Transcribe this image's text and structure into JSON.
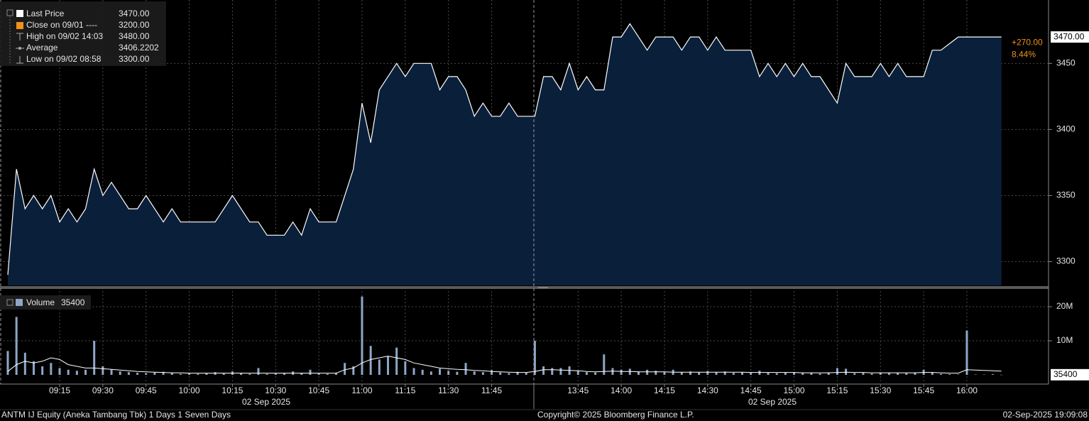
{
  "chart_data": [
    {
      "type": "area",
      "series": [
        {
          "name": "Last Price",
          "color": "#ffffff",
          "fill": "#0a1f3a",
          "last_label": "3470.00",
          "values": [
            3290,
            3370,
            3340,
            3350,
            3340,
            3350,
            3330,
            3340,
            3330,
            3340,
            3370,
            3350,
            3360,
            3350,
            3340,
            3340,
            3350,
            3340,
            3330,
            3340,
            3330,
            3330,
            3330,
            3330,
            3330,
            3340,
            3350,
            3340,
            3330,
            3330,
            3320,
            3320,
            3320,
            3330,
            3320,
            3340,
            3330,
            3330,
            3330,
            3350,
            3370,
            3420,
            3390,
            3430,
            3440,
            3450,
            3440,
            3450,
            3450,
            3450,
            3430,
            3440,
            3440,
            3430,
            3410,
            3420,
            3410,
            3410,
            3420,
            3410,
            3410,
            3410,
            3440,
            3440,
            3430,
            3450,
            3430,
            3440,
            3430,
            3430,
            3470,
            3470,
            3480,
            3470,
            3460,
            3470,
            3470,
            3470,
            3460,
            3470,
            3470,
            3460,
            3470,
            3460,
            3460,
            3460,
            3460,
            3440,
            3450,
            3440,
            3450,
            3440,
            3450,
            3440,
            3440,
            3430,
            3420,
            3450,
            3440,
            3440,
            3440,
            3450,
            3440,
            3450,
            3440,
            3440,
            3440,
            3460,
            3460,
            3465,
            3470,
            3470,
            3470,
            3470,
            3470,
            3470
          ]
        }
      ],
      "legend": [
        {
          "label": "Close on 09/01 ----",
          "value": "3200.00",
          "color": "#f0901e"
        },
        {
          "label": "High on 09/02 14:03",
          "value": "3480.00"
        },
        {
          "label": "Average",
          "value": "3406.2202"
        },
        {
          "label": "Low on 09/02 08:58",
          "value": "3300.00"
        }
      ],
      "change": "+270.00",
      "change_pct": "8.44%",
      "change_color": "#f0901e",
      "ylim": [
        3282,
        3498
      ],
      "yticks": [
        3300,
        3350,
        3400,
        3450
      ],
      "grid": true
    },
    {
      "type": "bar",
      "categories": [
        null,
        null,
        null,
        null,
        null,
        null,
        "09:15",
        null,
        null,
        null,
        null,
        "09:30",
        null,
        null,
        null,
        null,
        "09:45",
        null,
        null,
        null,
        null,
        "10:00",
        null,
        null,
        null,
        null,
        "10:15",
        null,
        null,
        null,
        null,
        "10:30",
        null,
        null,
        null,
        null,
        "10:45",
        null,
        null,
        null,
        null,
        "11:00",
        null,
        null,
        null,
        null,
        "11:15",
        null,
        null,
        null,
        null,
        "11:30",
        null,
        null,
        null,
        null,
        "11:45",
        null,
        null,
        null,
        null,
        null,
        null,
        null,
        null,
        null,
        "13:45",
        null,
        null,
        null,
        null,
        "14:00",
        null,
        null,
        null,
        null,
        "14:15",
        null,
        null,
        null,
        null,
        "14:30",
        null,
        null,
        null,
        null,
        "14:45",
        null,
        null,
        null,
        null,
        "15:00",
        null,
        null,
        null,
        null,
        "15:15",
        null,
        null,
        null,
        null,
        "15:30",
        null,
        null,
        null,
        null,
        "15:45",
        null,
        null,
        null,
        null,
        "16:00",
        null,
        null,
        null,
        null
      ],
      "date_labels": [
        "02 Sep 2025",
        "02 Sep 2025"
      ],
      "series": [
        {
          "name": "Volume",
          "color": "#8ea6c8",
          "values": [
            7000000,
            17000000,
            6500000,
            4000000,
            2500000,
            3500000,
            2000000,
            1500000,
            1200000,
            1500000,
            10000000,
            2500000,
            1500000,
            1000000,
            800000,
            600000,
            500000,
            700000,
            900000,
            600000,
            300000,
            400000,
            300000,
            500000,
            800000,
            400000,
            1000000,
            500000,
            300000,
            2000000,
            300000,
            400000,
            500000,
            1000000,
            600000,
            1500000,
            400000,
            300000,
            600000,
            3500000,
            2500000,
            23000000,
            8500000,
            4500000,
            5500000,
            8000000,
            4000000,
            2000000,
            1500000,
            1000000,
            1800000,
            1200000,
            900000,
            3500000,
            1000000,
            800000,
            1400000,
            700000,
            500000,
            900000,
            600000,
            10000000,
            2500000,
            2000000,
            2000000,
            2500000,
            1200000,
            800000,
            700000,
            6000000,
            2000000,
            1500000,
            1800000,
            1000000,
            1500000,
            1200000,
            900000,
            1500000,
            800000,
            1000000,
            700000,
            1100000,
            800000,
            1000000,
            600000,
            800000,
            700000,
            1200000,
            600000,
            500000,
            700000,
            800000,
            500000,
            600000,
            400000,
            700000,
            2000000,
            1800000,
            500000,
            600000,
            400000,
            700000,
            500000,
            600000,
            500000,
            700000,
            1500000,
            800000,
            300000,
            200000,
            100000,
            13000000,
            100000,
            100000,
            200000,
            35400
          ]
        },
        {
          "color": "#ffffff",
          "values": [
            1000000,
            3000000,
            4000000,
            3500000,
            4000000,
            5000000,
            4500000,
            3000000,
            2500000,
            2000000,
            2000000,
            1800000,
            1600000,
            1400000,
            1200000,
            1000000,
            900000,
            800000,
            700000,
            600000,
            600000,
            500000,
            500000,
            500000,
            500000,
            500000,
            500000,
            500000,
            500000,
            500000,
            500000,
            500000,
            500000,
            500000,
            500000,
            500000,
            500000,
            500000,
            500000,
            1500000,
            2000000,
            3500000,
            4500000,
            5000000,
            5500000,
            5000000,
            4500000,
            3500000,
            3000000,
            2500000,
            2000000,
            1800000,
            1600000,
            1500000,
            1300000,
            1200000,
            1000000,
            900000,
            800000,
            700000,
            700000,
            1000000,
            1500000,
            1500000,
            1400000,
            1300000,
            1200000,
            1000000,
            900000,
            1000000,
            1100000,
            1000000,
            1000000,
            900000,
            900000,
            900000,
            900000,
            800000,
            800000,
            800000,
            800000,
            800000,
            800000,
            800000,
            800000,
            800000,
            700000,
            700000,
            700000,
            700000,
            700000,
            700000,
            600000,
            600000,
            600000,
            600000,
            700000,
            800000,
            700000,
            700000,
            600000,
            600000,
            600000,
            600000,
            600000,
            600000,
            700000,
            700000,
            600000,
            500000,
            500000,
            1500000,
            1400000,
            1300000,
            1200000,
            1100000
          ]
        }
      ],
      "ylim": [
        -2500000,
        25000000
      ],
      "yticks": [
        {
          "value": 20000000,
          "label": "20M"
        },
        {
          "value": 10000000,
          "label": "10M"
        }
      ],
      "grid": true
    }
  ],
  "footer": {
    "left": "ANTM IJ Equity (Aneka Tambang Tbk) 1 Days 1 Seven Days",
    "center": "Copyright© 2025 Bloomberg Finance L.P.",
    "right": "02-Sep-2025 19:09:08"
  }
}
